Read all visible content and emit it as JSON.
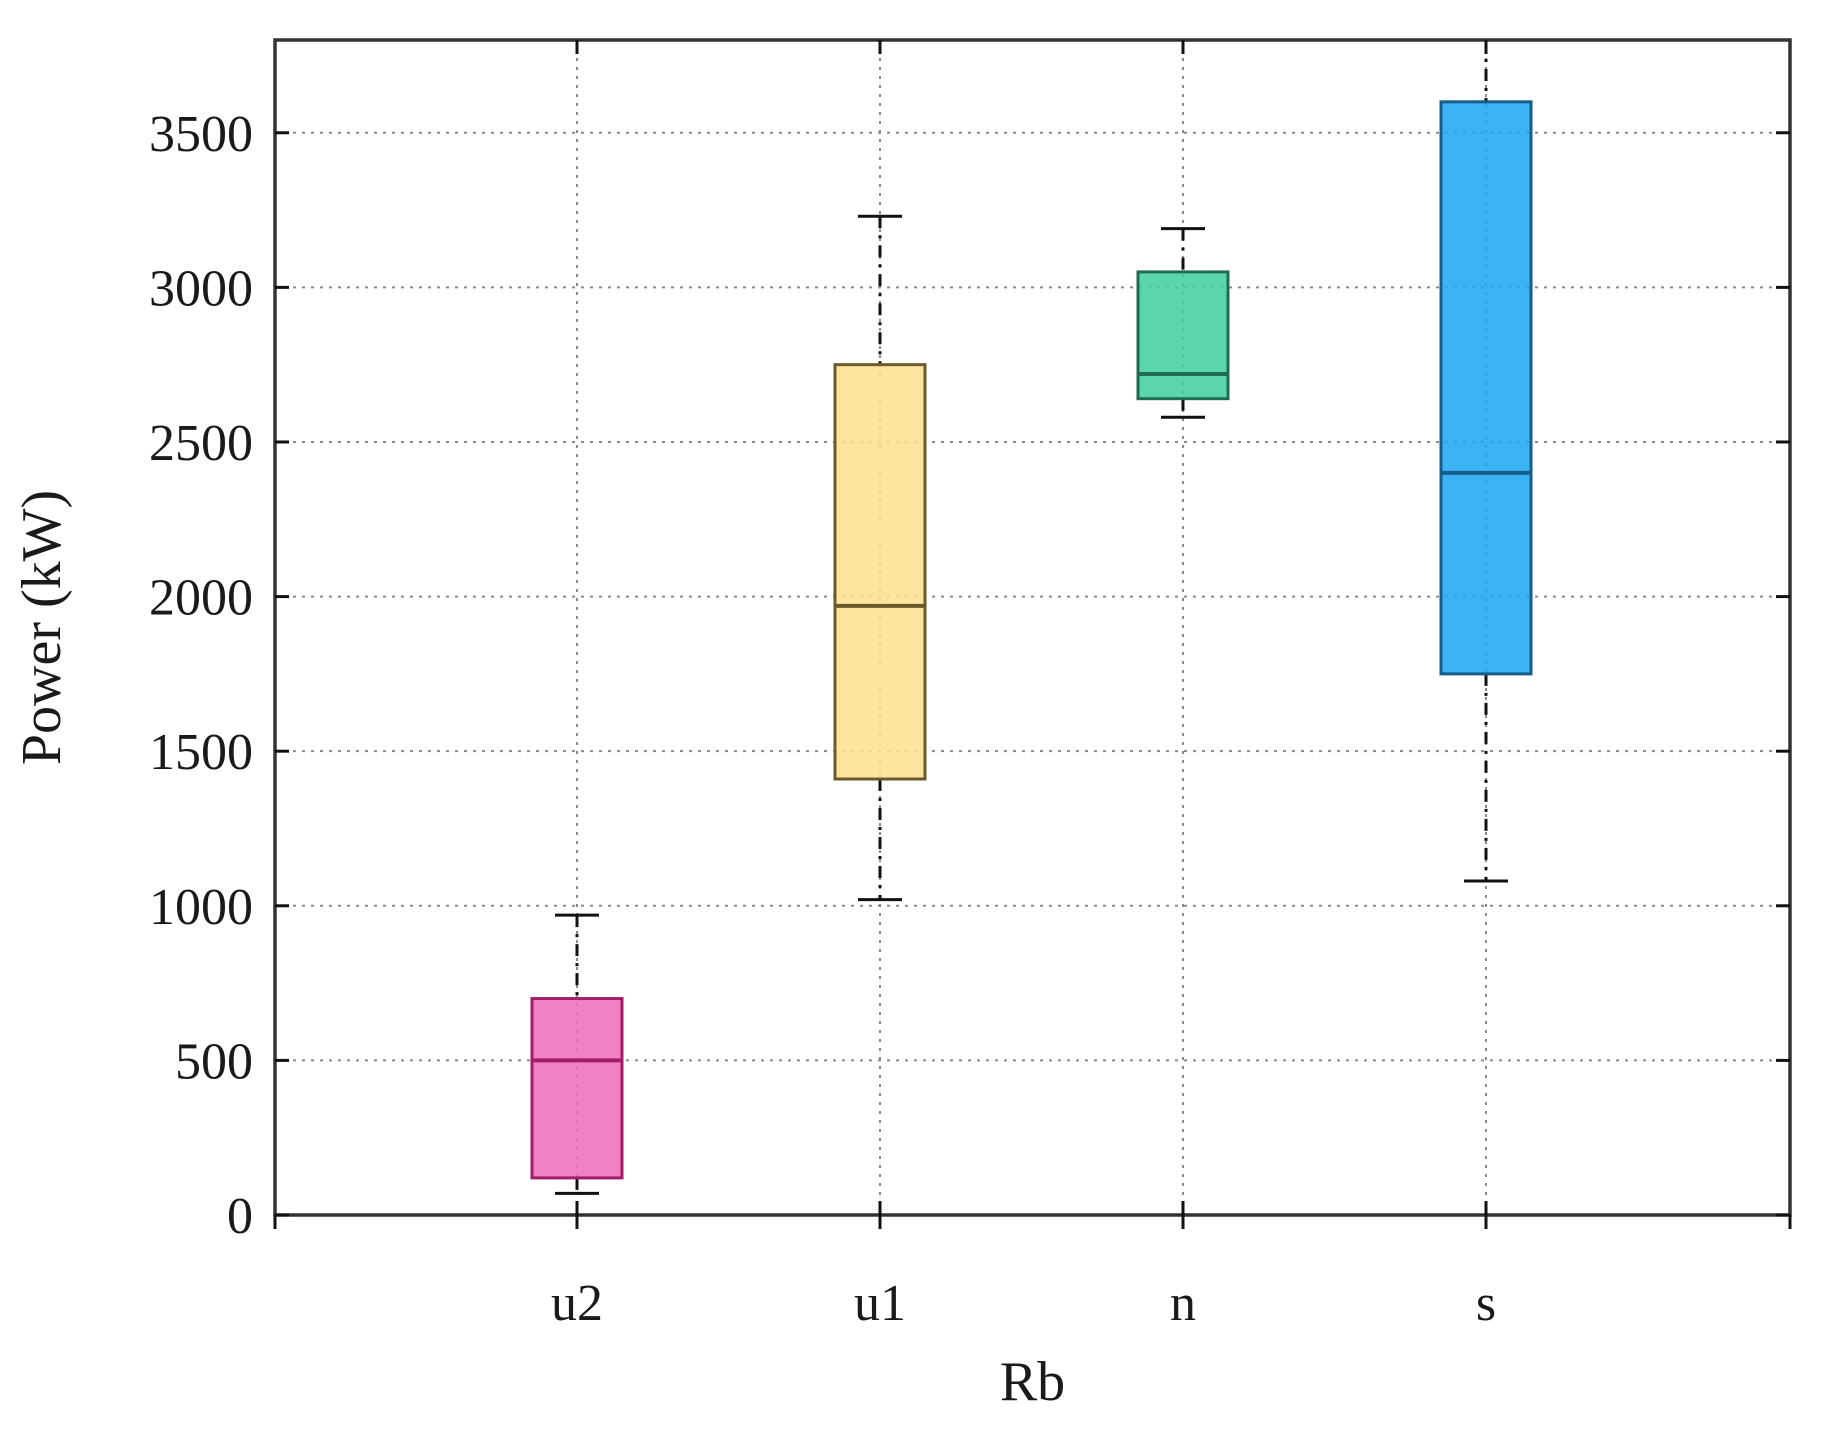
{
  "chart_data": {
    "type": "box",
    "xlabel": "Rb",
    "ylabel": "Power (kW)",
    "ylim": [
      0,
      3800
    ],
    "yticks": [
      0,
      500,
      1000,
      1500,
      2000,
      2500,
      3000,
      3500
    ],
    "grid": true,
    "categories": [
      "u2",
      "u1",
      "n",
      "s"
    ],
    "boxes": [
      {
        "category": "u2",
        "min": 70,
        "q1": 120,
        "median": 500,
        "q3": 700,
        "max": 970,
        "color": "#f06bb8",
        "edge": "#a01e6a"
      },
      {
        "category": "u1",
        "min": 1020,
        "q1": 1410,
        "median": 1970,
        "q3": 2750,
        "max": 3230,
        "color": "#fddf8e",
        "edge": "#6b5a2a"
      },
      {
        "category": "n",
        "min": 2580,
        "q1": 2640,
        "median": 2720,
        "q3": 3050,
        "max": 3190,
        "color": "#3dcf9b",
        "edge": "#1f6b55"
      },
      {
        "category": "s",
        "min": 1080,
        "q1": 1750,
        "median": 2400,
        "q3": 3600,
        "max": 3800,
        "color": "#1aa7f2",
        "edge": "#155d8a"
      }
    ]
  }
}
